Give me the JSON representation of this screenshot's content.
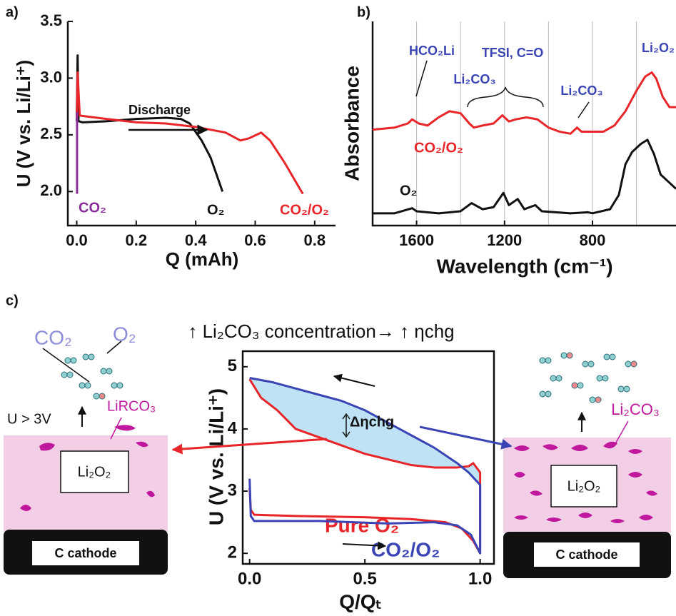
{
  "chart_data": [
    {
      "type": "line",
      "panel_label": "a)",
      "xlabel": "Q (mAh)",
      "ylabel": "U (V vs. Li/Li⁺)",
      "xlim": [
        -0.03,
        0.87
      ],
      "ylim": [
        1.7,
        3.5
      ],
      "xticks": [
        {
          "value": 0,
          "label": "0.0"
        },
        0.2,
        0.4,
        0.6,
        0.8
      ],
      "yticks": [
        {
          "value": 2,
          "label": "2.0"
        },
        2.5,
        {
          "value": 3,
          "label": "3.0"
        },
        3.5
      ],
      "annotations": [
        "Discharge"
      ],
      "series": [
        {
          "name": "O₂",
          "color": "#111111",
          "x": [
            0,
            0.003,
            0.006,
            0.02,
            0.1,
            0.2,
            0.3,
            0.35,
            0.38,
            0.42,
            0.45,
            0.49
          ],
          "values": [
            2.62,
            3.2,
            2.62,
            2.61,
            2.62,
            2.64,
            2.65,
            2.64,
            2.6,
            2.45,
            2.3,
            2.0
          ]
        },
        {
          "name": "CO₂/O₂",
          "color": "#e8262a",
          "x": [
            0,
            0.003,
            0.01,
            0.1,
            0.2,
            0.3,
            0.4,
            0.5,
            0.55,
            0.58,
            0.62,
            0.65,
            0.7,
            0.76
          ],
          "values": [
            2.65,
            3.05,
            2.67,
            2.64,
            2.61,
            2.6,
            2.57,
            2.52,
            2.45,
            2.47,
            2.52,
            2.45,
            2.25,
            1.98
          ]
        },
        {
          "name": "CO₂",
          "color": "#8b2d9c",
          "x": [
            0.001,
            0.001
          ],
          "values": [
            2.7,
            1.98
          ]
        }
      ]
    },
    {
      "type": "line",
      "panel_label": "b)",
      "xlabel": "Wavelength (cm⁻¹)",
      "ylabel": "Absorbance",
      "xlim": [
        1800,
        420
      ],
      "ylim": [
        0,
        10
      ],
      "xticks": [
        1600,
        1200,
        800
      ],
      "xgrid": [
        1600,
        1400,
        1200,
        1000,
        800,
        600
      ],
      "annotations": [
        "HCO₂Li",
        "Li₂CO₃",
        "TFSI, C=O",
        "Li₂CO₃",
        "Li₂O₂"
      ],
      "series": [
        {
          "name": "CO₂/O₂",
          "color": "#e8262a",
          "x": [
            1800,
            1700,
            1640,
            1620,
            1590,
            1550,
            1500,
            1450,
            1400,
            1360,
            1340,
            1300,
            1250,
            1210,
            1180,
            1150,
            1100,
            1050,
            1000,
            950,
            900,
            870,
            850,
            800,
            750,
            700,
            650,
            600,
            560,
            530,
            510,
            480,
            450,
            420
          ],
          "values": [
            4.7,
            4.8,
            5.0,
            5.2,
            5.0,
            4.9,
            5.3,
            5.6,
            5.5,
            5.0,
            4.8,
            4.9,
            5.0,
            5.4,
            5.1,
            5.2,
            5.3,
            5.2,
            4.8,
            4.6,
            4.5,
            4.8,
            4.6,
            4.6,
            4.6,
            4.9,
            5.6,
            6.6,
            7.3,
            7.5,
            7.2,
            6.3,
            5.8,
            5.8
          ]
        },
        {
          "name": "O₂",
          "color": "#111111",
          "x": [
            1800,
            1700,
            1620,
            1600,
            1500,
            1400,
            1350,
            1300,
            1250,
            1205,
            1180,
            1140,
            1110,
            1060,
            1030,
            900,
            820,
            800,
            720,
            680,
            650,
            620,
            580,
            550,
            520,
            490,
            460,
            420
          ],
          "values": [
            0.6,
            0.6,
            0.85,
            0.7,
            0.6,
            0.7,
            1.1,
            0.8,
            0.9,
            1.6,
            1.0,
            1.3,
            0.8,
            1.0,
            0.7,
            0.6,
            0.65,
            0.6,
            0.8,
            1.5,
            3.0,
            3.6,
            4.0,
            4.2,
            3.5,
            2.5,
            2.2,
            1.8
          ]
        }
      ]
    },
    {
      "type": "line",
      "panel_label": "c)",
      "xlabel": "Q/Qₜ",
      "ylabel": "U (V vs. Li/Li⁺)",
      "xlim": [
        -0.03,
        1.06
      ],
      "ylim": [
        1.83,
        5.25
      ],
      "xticks": [
        {
          "value": 0,
          "label": "0.0"
        },
        0.5,
        {
          "value": 1,
          "label": "1.0"
        }
      ],
      "yticks": [
        2,
        3,
        4,
        5
      ],
      "annotations": [
        "Δηchg"
      ],
      "series": [
        {
          "name": "Pure O₂",
          "color": "#e8262a",
          "x": [
            0,
            0.005,
            0.02,
            0.2,
            0.5,
            0.7,
            0.85,
            0.92,
            0.97,
            1.0,
            1.0,
            0.97,
            0.95,
            0.9,
            0.8,
            0.7,
            0.5,
            0.35,
            0.2,
            0.12,
            0.05,
            0
          ],
          "values": [
            3.05,
            2.7,
            2.62,
            2.6,
            2.58,
            2.55,
            2.5,
            2.4,
            2.2,
            2.0,
            3.3,
            3.45,
            3.4,
            3.38,
            3.38,
            3.42,
            3.6,
            3.8,
            4.0,
            4.3,
            4.5,
            4.8
          ]
        },
        {
          "name": "CO₂/O₂",
          "color": "#3a44b4",
          "x": [
            0,
            0.005,
            0.02,
            0.3,
            0.6,
            0.8,
            0.9,
            0.96,
            1.0,
            1.0,
            0.95,
            0.9,
            0.8,
            0.7,
            0.6,
            0.5,
            0.4,
            0.3,
            0.2,
            0.1,
            0
          ],
          "values": [
            3.2,
            2.6,
            2.52,
            2.52,
            2.48,
            2.5,
            2.45,
            2.3,
            2.0,
            3.1,
            3.3,
            3.45,
            3.7,
            3.9,
            4.1,
            4.3,
            4.45,
            4.55,
            4.65,
            4.75,
            4.82
          ]
        }
      ]
    }
  ],
  "schematic": {
    "headline": "↑ Li₂CO₃ concentration→ ↑ ηchg",
    "left": {
      "gases": [
        "CO₂",
        "O₂"
      ],
      "condition": "U > 3V",
      "product": "LiRCO₃",
      "film": "Li₂O₂",
      "electrode": "C cathode"
    },
    "right": {
      "product": "Li₂CO₃",
      "film": "Li₂O₂",
      "electrode": "C cathode"
    }
  }
}
